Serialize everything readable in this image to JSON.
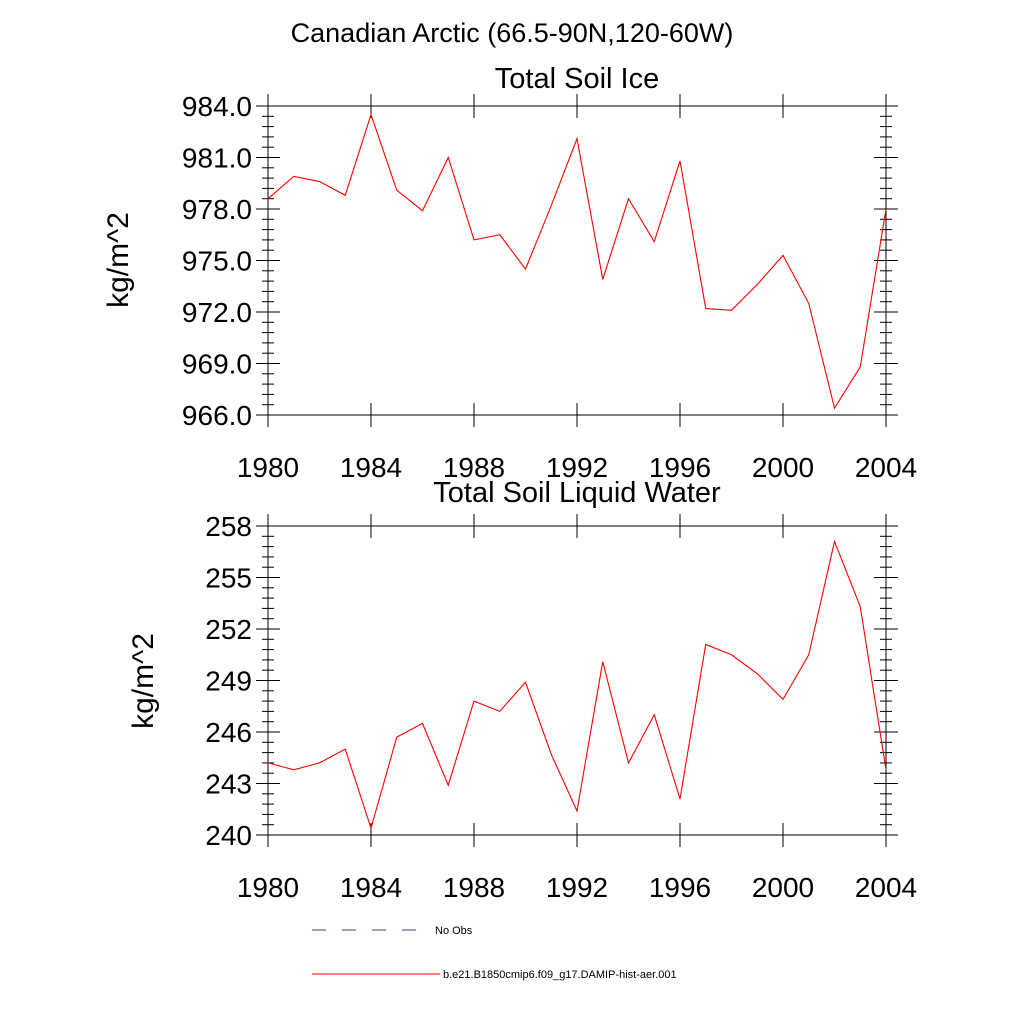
{
  "main_title": "Canadian Arctic (66.5-90N,120-60W)",
  "colors": {
    "model": "#ff0000",
    "obs": "#3a4a8a",
    "axis": "#000000"
  },
  "legend": {
    "obs_label": "No Obs",
    "model_label": "b.e21.B1850cmip6.f09_g17.DAMIP-hist-aer.001"
  },
  "chart_data": [
    {
      "type": "line",
      "title": "Total Soil Ice",
      "ylabel": "kg/m^2",
      "xlim": [
        1980,
        2004
      ],
      "ylim": [
        966,
        984
      ],
      "xticks": [
        1980,
        1984,
        1988,
        1992,
        1996,
        2000,
        2004
      ],
      "xtick_labels": [
        "1980",
        "1984",
        "1988",
        "1992",
        "1996",
        "2000",
        "2004"
      ],
      "yticks": [
        966,
        969,
        972,
        975,
        978,
        981,
        984
      ],
      "ytick_labels": [
        "966.0",
        "969.0",
        "972.0",
        "975.0",
        "978.0",
        "981.0",
        "984.0"
      ],
      "x": [
        1980,
        1981,
        1982,
        1983,
        1984,
        1985,
        1986,
        1987,
        1988,
        1989,
        1990,
        1991,
        1992,
        1993,
        1994,
        1995,
        1996,
        1997,
        1998,
        1999,
        2000,
        2001,
        2002,
        2003,
        2004
      ],
      "series": [
        {
          "name": "b.e21.B1850cmip6.f09_g17.DAMIP-hist-aer.001",
          "values": [
            978.6,
            979.9,
            979.6,
            978.8,
            983.5,
            979.1,
            977.9,
            981.0,
            976.2,
            976.5,
            974.5,
            978.2,
            982.1,
            973.9,
            978.6,
            976.1,
            980.8,
            972.2,
            972.1,
            973.6,
            975.3,
            972.5,
            966.4,
            968.8,
            978.0
          ]
        }
      ]
    },
    {
      "type": "line",
      "title": "Total Soil Liquid Water",
      "ylabel": "kg/m^2",
      "xlim": [
        1980,
        2004
      ],
      "ylim": [
        240,
        258
      ],
      "xticks": [
        1980,
        1984,
        1988,
        1992,
        1996,
        2000,
        2004
      ],
      "xtick_labels": [
        "1980",
        "1984",
        "1988",
        "1992",
        "1996",
        "2000",
        "2004"
      ],
      "yticks": [
        240,
        243,
        246,
        249,
        252,
        255,
        258
      ],
      "ytick_labels": [
        "240",
        "243",
        "246",
        "249",
        "252",
        "255",
        "258"
      ],
      "x": [
        1980,
        1981,
        1982,
        1983,
        1984,
        1985,
        1986,
        1987,
        1988,
        1989,
        1990,
        1991,
        1992,
        1993,
        1994,
        1995,
        1996,
        1997,
        1998,
        1999,
        2000,
        2001,
        2002,
        2003,
        2004
      ],
      "series": [
        {
          "name": "b.e21.B1850cmip6.f09_g17.DAMIP-hist-aer.001",
          "values": [
            244.2,
            243.8,
            244.2,
            245.0,
            240.4,
            245.7,
            246.5,
            242.9,
            247.8,
            247.2,
            248.9,
            244.7,
            241.4,
            250.1,
            244.2,
            247.0,
            242.1,
            251.1,
            250.5,
            249.4,
            247.9,
            250.5,
            257.1,
            253.3,
            243.8
          ]
        }
      ]
    }
  ]
}
